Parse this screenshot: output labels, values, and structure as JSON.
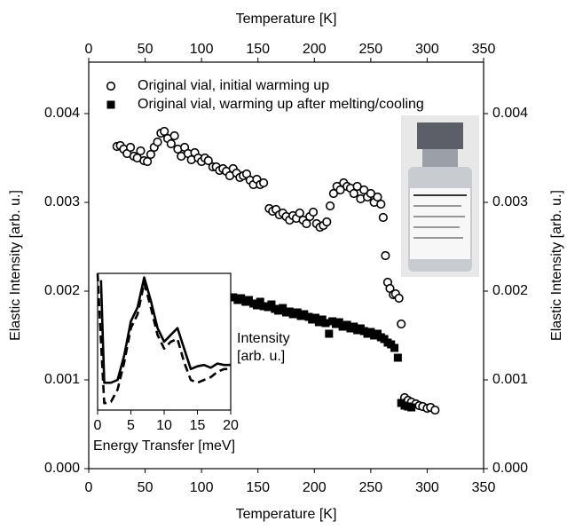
{
  "chart_data": [
    {
      "type": "scatter",
      "xlabel": "Temperature [K]",
      "ylabel": "Elastic Intensity [arb. u.]",
      "xlim": [
        0,
        350
      ],
      "ylim": [
        0,
        0.00458
      ],
      "xticks": [
        0,
        50,
        100,
        150,
        200,
        250,
        300,
        350
      ],
      "yticks": [
        {
          "value": 0,
          "label": "0.000"
        },
        0.001,
        0.002,
        0.003,
        0.004
      ],
      "legend": "upper left",
      "series": [
        {
          "name": "Original vial, initial warming up",
          "marker": "circle",
          "color": "#000000",
          "fill": "#ffffff",
          "x": [
            25,
            28,
            31,
            34,
            37,
            40,
            43,
            46,
            49,
            52,
            55,
            58,
            61,
            64,
            67,
            70,
            73,
            76,
            79,
            82,
            85,
            88,
            91,
            94,
            97,
            100,
            103,
            106,
            110,
            113,
            116,
            119,
            122,
            125,
            128,
            131,
            134,
            137,
            140,
            143,
            146,
            149,
            152,
            155,
            160,
            163,
            166,
            169,
            172,
            175,
            178,
            181,
            184,
            187,
            190,
            193,
            196,
            199,
            202,
            205,
            208,
            211,
            214,
            217,
            220,
            223,
            226,
            229,
            232,
            235,
            238,
            241,
            244,
            247,
            250,
            253,
            256,
            259,
            261,
            263,
            265,
            267,
            270,
            272,
            275,
            277,
            280,
            283,
            286,
            290,
            293,
            296,
            300,
            303,
            307
          ],
          "values": [
            0.00363,
            0.00364,
            0.0036,
            0.00355,
            0.00362,
            0.00352,
            0.0035,
            0.00358,
            0.00347,
            0.00346,
            0.00354,
            0.00362,
            0.00368,
            0.00378,
            0.0038,
            0.00372,
            0.00366,
            0.00375,
            0.0036,
            0.00352,
            0.00362,
            0.00355,
            0.00348,
            0.00356,
            0.0035,
            0.00346,
            0.0035,
            0.00347,
            0.0034,
            0.0034,
            0.00336,
            0.00338,
            0.00335,
            0.0033,
            0.00338,
            0.00333,
            0.00328,
            0.0033,
            0.00332,
            0.00325,
            0.0032,
            0.00326,
            0.0032,
            0.00322,
            0.00293,
            0.0029,
            0.00292,
            0.00286,
            0.00288,
            0.00284,
            0.0028,
            0.00285,
            0.00282,
            0.00288,
            0.0028,
            0.00276,
            0.00284,
            0.00289,
            0.00276,
            0.00272,
            0.00274,
            0.00278,
            0.00296,
            0.0031,
            0.00318,
            0.00314,
            0.00322,
            0.00318,
            0.00316,
            0.0031,
            0.00318,
            0.00304,
            0.00314,
            0.00306,
            0.0031,
            0.003,
            0.00306,
            0.00298,
            0.00283,
            0.0024,
            0.0021,
            0.00203,
            0.00196,
            0.00197,
            0.00192,
            0.00163,
            0.0008,
            0.00077,
            0.00075,
            0.00073,
            0.00071,
            0.0007,
            0.00068,
            0.00069,
            0.00066
          ]
        },
        {
          "name": "Original vial, warming up after melting/cooling",
          "marker": "square",
          "color": "#000000",
          "fill": "#000000",
          "x": [
            128,
            132,
            135,
            139,
            142,
            146,
            149,
            152,
            155,
            159,
            162,
            165,
            168,
            172,
            175,
            178,
            181,
            185,
            188,
            191,
            195,
            198,
            201,
            204,
            207,
            210,
            213,
            216,
            219,
            222,
            225,
            229,
            232,
            235,
            238,
            241,
            244,
            247,
            250,
            253,
            256,
            259,
            262,
            265,
            268,
            271,
            274,
            277,
            280,
            283,
            286
          ],
          "values": [
            0.00193,
            0.0019,
            0.00192,
            0.00188,
            0.0019,
            0.00186,
            0.00184,
            0.00188,
            0.00183,
            0.00182,
            0.00185,
            0.0018,
            0.00178,
            0.00181,
            0.00176,
            0.00177,
            0.00174,
            0.00176,
            0.00172,
            0.00174,
            0.00171,
            0.00168,
            0.0017,
            0.00165,
            0.00168,
            0.00164,
            0.00152,
            0.00166,
            0.00163,
            0.00165,
            0.0016,
            0.00162,
            0.00158,
            0.0016,
            0.00156,
            0.00158,
            0.00155,
            0.00152,
            0.00154,
            0.0015,
            0.00152,
            0.00148,
            0.00146,
            0.00142,
            0.0014,
            0.00136,
            0.00125,
            0.00074,
            0.00071,
            0.0007,
            0.00069
          ]
        }
      ]
    },
    {
      "type": "line",
      "xlabel": "Energy Transfer [meV]",
      "ylabel": [
        "Intensity",
        "[arb. u.]"
      ],
      "xlim": [
        0,
        20
      ],
      "ylim": [
        0,
        1
      ],
      "xticks": [
        0,
        5,
        10,
        15,
        20
      ],
      "x": [
        0,
        0.5,
        1,
        2,
        3,
        4,
        5,
        6,
        7,
        8,
        9,
        10,
        11,
        12,
        13,
        14,
        15,
        16,
        17,
        18,
        19,
        20
      ],
      "series": [
        {
          "style": "solid",
          "color": "#000000",
          "values": [
            null,
            0.95,
            0.2,
            0.2,
            0.22,
            0.4,
            0.65,
            0.75,
            0.97,
            0.8,
            0.6,
            0.5,
            0.55,
            0.6,
            0.45,
            0.3,
            0.32,
            0.33,
            0.31,
            0.34,
            0.33,
            0.33
          ]
        },
        {
          "style": "dashed",
          "color": "#000000",
          "values": [
            1.0,
            0.5,
            0.05,
            0.06,
            0.15,
            0.35,
            0.6,
            0.7,
            0.93,
            0.75,
            0.55,
            0.45,
            0.5,
            0.52,
            0.35,
            0.22,
            0.2,
            0.22,
            0.24,
            0.28,
            0.3,
            0.3
          ]
        }
      ]
    }
  ]
}
